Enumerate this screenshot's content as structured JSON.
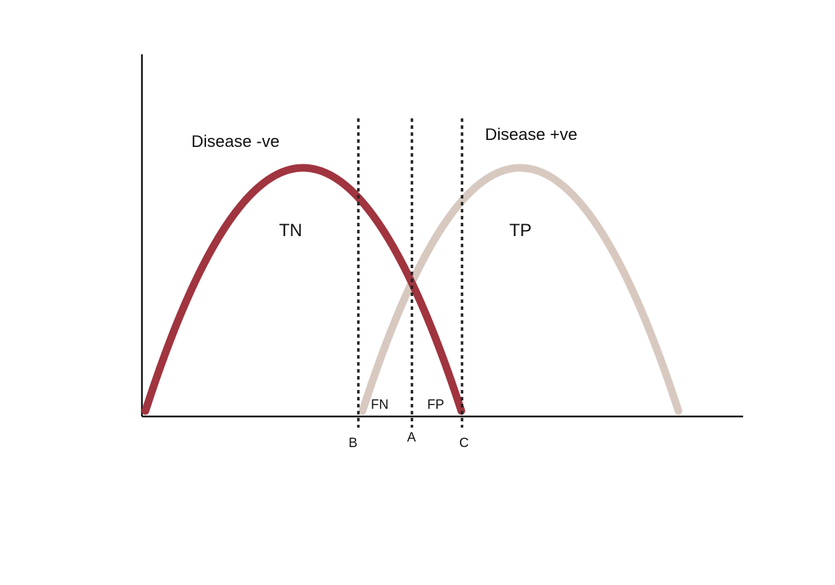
{
  "colors": {
    "background": "#ffffff",
    "axis": "#111111",
    "cutoff_line": "#222222",
    "disease_negative_curve": "#a0343f",
    "disease_positive_curve": "#d8c9c0",
    "text": "#111111"
  },
  "groups": {
    "negative": "Disease -ve",
    "positive": "Disease +ve"
  },
  "regions": {
    "tn": "TN",
    "tp": "TP",
    "fn": "FN",
    "fp": "FP"
  },
  "cutoffs": {
    "b": "B",
    "a": "A",
    "c": "C"
  }
}
